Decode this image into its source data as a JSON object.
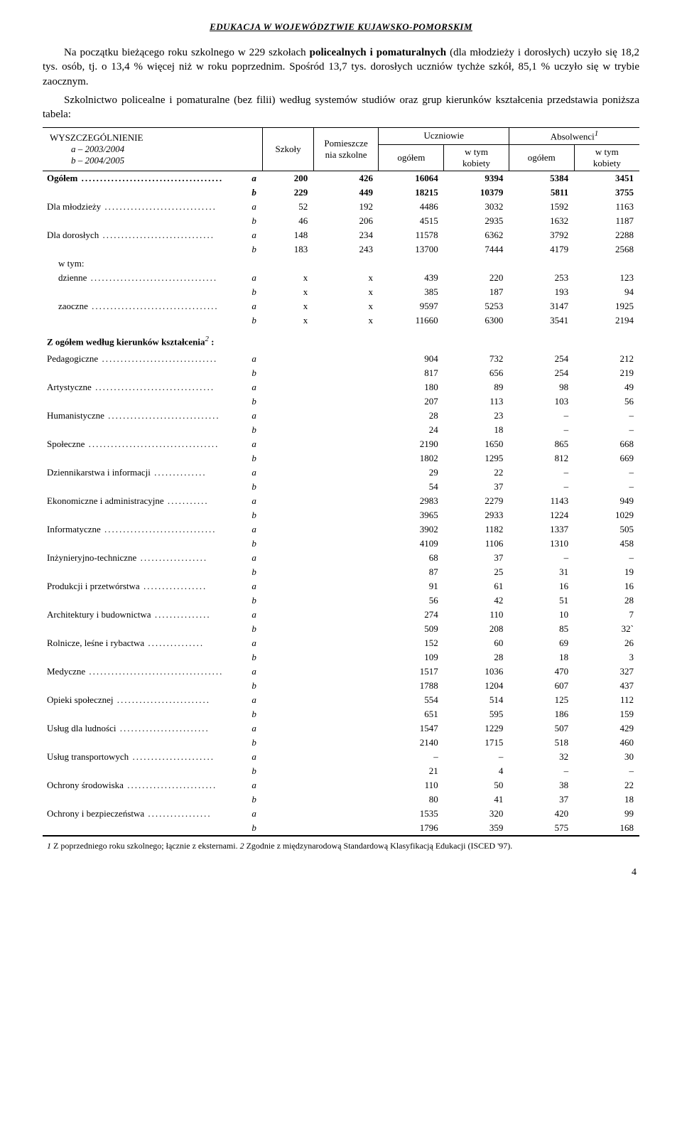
{
  "page": {
    "running_head": "EDUKACJA  W  WOJEWÓDZTWIE  KUJAWSKO-POMORSKIM",
    "page_number": "4"
  },
  "paras": {
    "p1": "Na początku bieżącego roku szkolnego w 229 szkołach policealnych i pomaturalnych (dla młodzieży i dorosłych) uczyło się 18,2 tys. osób, tj. o 13,4 % więcej niż w roku poprzednim. Spośród 13,7 tys. dorosłych uczniów tychże szkół, 85,1 % uczyło się w trybie zaocznym.",
    "p2": "Szkolnictwo policealne i pomaturalne (bez filii) według systemów studiów oraz grup kierunków kształcenia przedstawia poniższa tabela:"
  },
  "bold_in_p1": {
    "b1": "policealnych i pomaturalnych"
  },
  "head": {
    "col1_l1": "WYSZCZEGÓLNIENIE",
    "col1_l2": "a – 2003/2004",
    "col1_l3": "b – 2004/2005",
    "col2": "Szkoły",
    "col3": "Pomieszcze\nnia szkolne",
    "col_uczniowie": "Uczniowie",
    "col_absolwenci": "Absolwenci",
    "col_absolwenci_sup": "1",
    "sub_ogolem": "ogółem",
    "sub_wtym": "w tym\nkobiety"
  },
  "section1": {
    "rows": [
      {
        "label": "Ogółem",
        "ab": "a",
        "v": [
          "200",
          "426",
          "16064",
          "9394",
          "5384",
          "3451"
        ],
        "bold": true,
        "dots": true
      },
      {
        "label": "",
        "ab": "b",
        "v": [
          "229",
          "449",
          "18215",
          "10379",
          "5811",
          "3755"
        ],
        "bold": true
      },
      {
        "label": "Dla młodzieży",
        "ab": "a",
        "v": [
          "52",
          "192",
          "4486",
          "3032",
          "1592",
          "1163"
        ],
        "dots": true
      },
      {
        "label": "",
        "ab": "b",
        "v": [
          "46",
          "206",
          "4515",
          "2935",
          "1632",
          "1187"
        ]
      },
      {
        "label": "Dla dorosłych",
        "ab": "a",
        "v": [
          "148",
          "234",
          "11578",
          "6362",
          "3792",
          "2288"
        ],
        "dots": true
      },
      {
        "label": "",
        "ab": "b",
        "v": [
          "183",
          "243",
          "13700",
          "7444",
          "4179",
          "2568"
        ]
      },
      {
        "label": "w tym:",
        "ab": "",
        "v": [
          "",
          "",
          "",
          "",
          "",
          ""
        ],
        "indent": 1
      },
      {
        "label": "dzienne",
        "ab": "a",
        "v": [
          "x",
          "x",
          "439",
          "220",
          "253",
          "123"
        ],
        "indent": 1,
        "dots": true
      },
      {
        "label": "",
        "ab": "b",
        "v": [
          "x",
          "x",
          "385",
          "187",
          "193",
          "94"
        ]
      },
      {
        "label": "zaoczne",
        "ab": "a",
        "v": [
          "x",
          "x",
          "9597",
          "5253",
          "3147",
          "1925"
        ],
        "indent": 1,
        "dots": true
      },
      {
        "label": "",
        "ab": "b",
        "v": [
          "x",
          "x",
          "11660",
          "6300",
          "3541",
          "2194"
        ]
      }
    ]
  },
  "section2_title": "Z ogółem według kierunków kształcenia",
  "section2_title_sup": "2",
  "section2_title_tail": " :",
  "section2": {
    "rows": [
      {
        "label": "Pedagogiczne",
        "ab": "a",
        "v": [
          "",
          "",
          "904",
          "732",
          "254",
          "212"
        ],
        "dots": true
      },
      {
        "label": "",
        "ab": "b",
        "v": [
          "",
          "",
          "817",
          "656",
          "254",
          "219"
        ]
      },
      {
        "label": "Artystyczne",
        "ab": "a",
        "v": [
          "",
          "",
          "180",
          "89",
          "98",
          "49"
        ],
        "dots": true
      },
      {
        "label": "",
        "ab": "b",
        "v": [
          "",
          "",
          "207",
          "113",
          "103",
          "56"
        ]
      },
      {
        "label": "Humanistyczne",
        "ab": "a",
        "v": [
          "",
          "",
          "28",
          "23",
          "–",
          "–"
        ],
        "dots": true
      },
      {
        "label": "",
        "ab": "b",
        "v": [
          "",
          "",
          "24",
          "18",
          "–",
          "–"
        ]
      },
      {
        "label": "Społeczne",
        "ab": "a",
        "v": [
          "",
          "",
          "2190",
          "1650",
          "865",
          "668"
        ],
        "dots": true
      },
      {
        "label": "",
        "ab": "b",
        "v": [
          "",
          "",
          "1802",
          "1295",
          "812",
          "669"
        ]
      },
      {
        "label": "Dziennikarstwa i informacji",
        "ab": "a",
        "v": [
          "",
          "",
          "29",
          "22",
          "–",
          "–"
        ],
        "dots": true
      },
      {
        "label": "",
        "ab": "b",
        "v": [
          "",
          "",
          "54",
          "37",
          "–",
          "–"
        ]
      },
      {
        "label": "Ekonomiczne i administracyjne",
        "ab": "a",
        "v": [
          "",
          "",
          "2983",
          "2279",
          "1143",
          "949"
        ],
        "dots": true
      },
      {
        "label": "",
        "ab": "b",
        "v": [
          "",
          "",
          "3965",
          "2933",
          "1224",
          "1029"
        ]
      },
      {
        "label": "Informatyczne",
        "ab": "a",
        "v": [
          "",
          "",
          "3902",
          "1182",
          "1337",
          "505"
        ],
        "dots": true
      },
      {
        "label": "",
        "ab": "b",
        "v": [
          "",
          "",
          "4109",
          "1106",
          "1310",
          "458"
        ]
      },
      {
        "label": "Inżynieryjno-techniczne",
        "ab": "a",
        "v": [
          "",
          "",
          "68",
          "37",
          "–",
          "–"
        ],
        "dots": true
      },
      {
        "label": "",
        "ab": "b",
        "v": [
          "",
          "",
          "87",
          "25",
          "31",
          "19"
        ]
      },
      {
        "label": "Produkcji i przetwórstwa",
        "ab": "a",
        "v": [
          "",
          "",
          "91",
          "61",
          "16",
          "16"
        ],
        "dots": true
      },
      {
        "label": "",
        "ab": "b",
        "v": [
          "",
          "",
          "56",
          "42",
          "51",
          "28"
        ]
      },
      {
        "label": "Architektury i budownictwa",
        "ab": "a",
        "v": [
          "",
          "",
          "274",
          "110",
          "10",
          "7"
        ],
        "dots": true
      },
      {
        "label": "",
        "ab": "b",
        "v": [
          "",
          "",
          "509",
          "208",
          "85",
          "32`"
        ]
      },
      {
        "label": "Rolnicze, leśne i rybactwa",
        "ab": "a",
        "v": [
          "",
          "",
          "152",
          "60",
          "69",
          "26"
        ],
        "dots": true
      },
      {
        "label": "",
        "ab": "b",
        "v": [
          "",
          "",
          "109",
          "28",
          "18",
          "3"
        ]
      },
      {
        "label": "Medyczne",
        "ab": "a",
        "v": [
          "",
          "",
          "1517",
          "1036",
          "470",
          "327"
        ],
        "dots": true
      },
      {
        "label": "",
        "ab": "b",
        "v": [
          "",
          "",
          "1788",
          "1204",
          "607",
          "437"
        ]
      },
      {
        "label": "Opieki społecznej",
        "ab": "a",
        "v": [
          "",
          "",
          "554",
          "514",
          "125",
          "112"
        ],
        "dots": true
      },
      {
        "label": "",
        "ab": "b",
        "v": [
          "",
          "",
          "651",
          "595",
          "186",
          "159"
        ]
      },
      {
        "label": "Usług dla ludności",
        "ab": "a",
        "v": [
          "",
          "",
          "1547",
          "1229",
          "507",
          "429"
        ],
        "dots": true
      },
      {
        "label": "",
        "ab": "b",
        "v": [
          "",
          "",
          "2140",
          "1715",
          "518",
          "460"
        ]
      },
      {
        "label": "Usług transportowych",
        "ab": "a",
        "v": [
          "",
          "",
          "–",
          "–",
          "32",
          "30"
        ],
        "dots": true
      },
      {
        "label": "",
        "ab": "b",
        "v": [
          "",
          "",
          "21",
          "4",
          "–",
          "–"
        ]
      },
      {
        "label": "Ochrony środowiska",
        "ab": "a",
        "v": [
          "",
          "",
          "110",
          "50",
          "38",
          "22"
        ],
        "dots": true
      },
      {
        "label": "",
        "ab": "b",
        "v": [
          "",
          "",
          "80",
          "41",
          "37",
          "18"
        ]
      },
      {
        "label": "Ochrony i bezpieczeństwa",
        "ab": "a",
        "v": [
          "",
          "",
          "1535",
          "320",
          "420",
          "99"
        ],
        "dots": true
      },
      {
        "label": "",
        "ab": "b",
        "v": [
          "",
          "",
          "1796",
          "359",
          "575",
          "168"
        ]
      }
    ]
  },
  "footnote": {
    "f1_n": "1",
    "f1": " Z poprzedniego roku szkolnego; łącznie z eksternami. ",
    "f2_n": "2",
    "f2": " Zgodnie z międzynarodową Standardową Klasyfikacją Edukacji (ISCED '97)."
  },
  "col_widths": [
    "280",
    "24",
    "70",
    "90",
    "90",
    "90",
    "90",
    "90"
  ],
  "colors": {
    "text": "#000000",
    "bg": "#ffffff",
    "rule": "#000000"
  }
}
